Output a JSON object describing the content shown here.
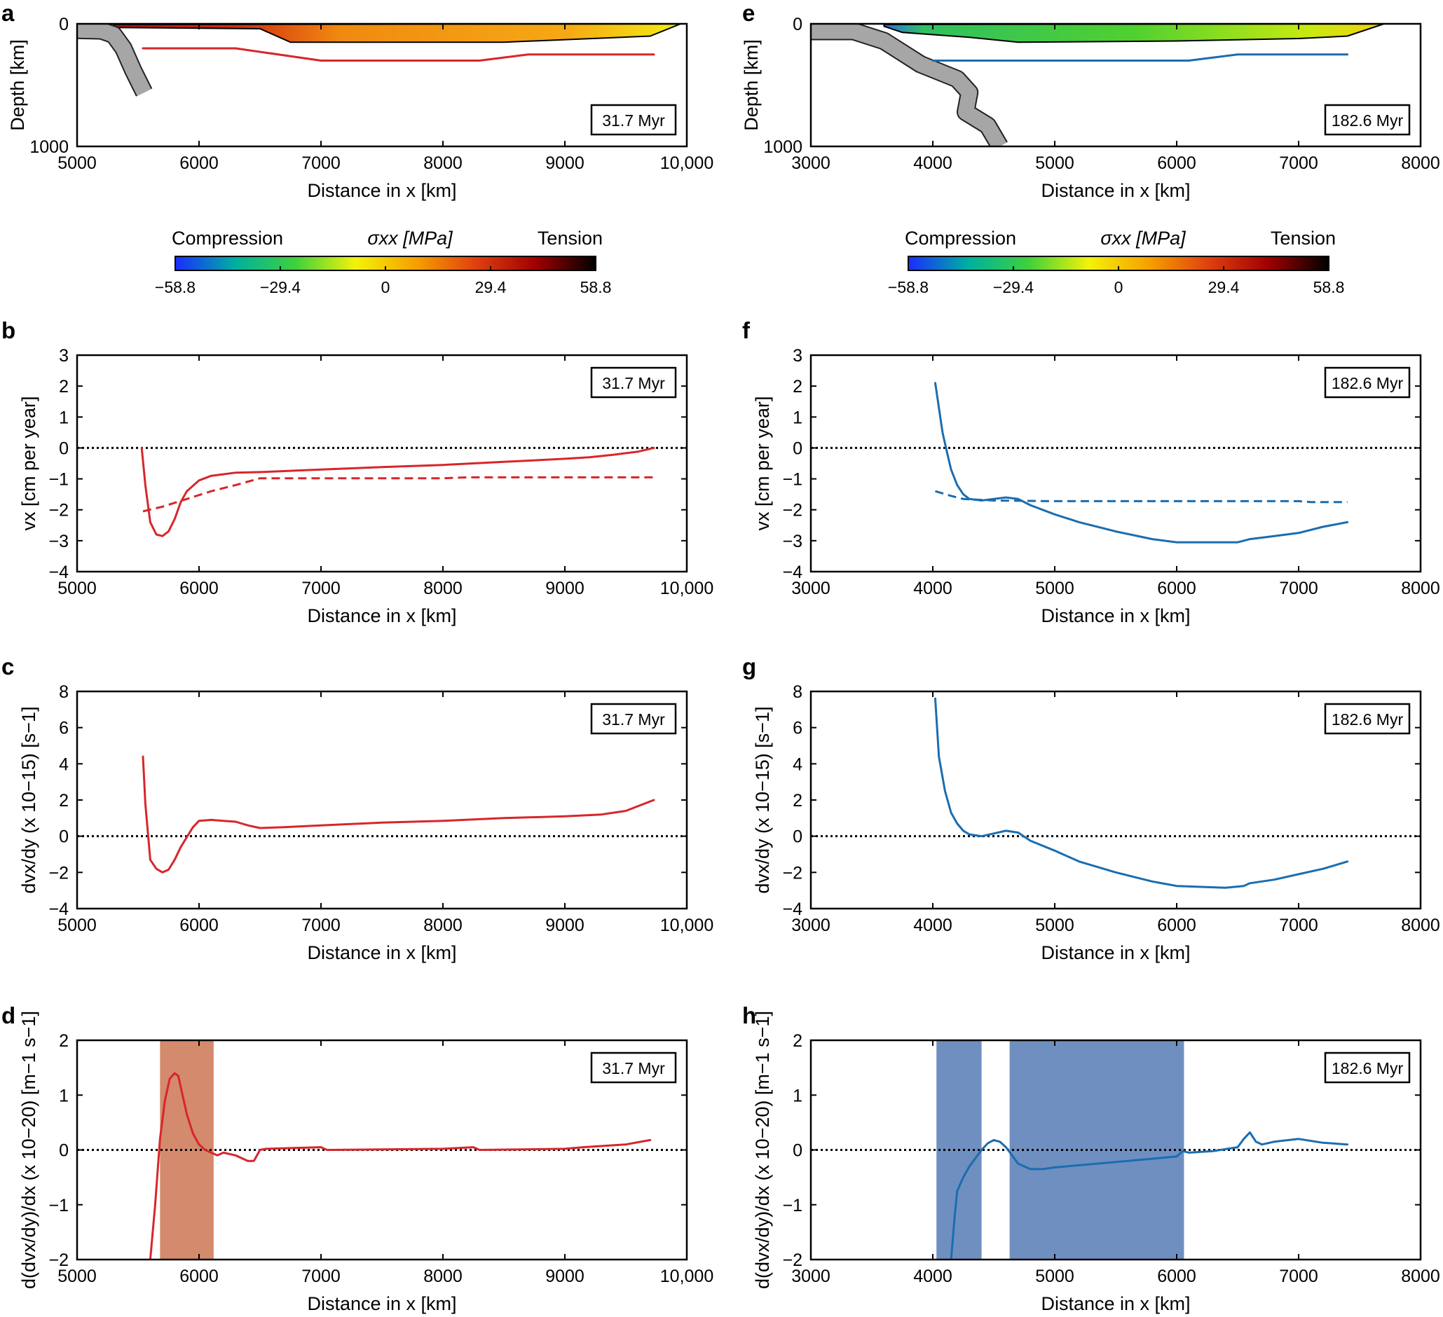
{
  "colors": {
    "red": "#d7262b",
    "blue": "#1a6db0",
    "salmon_band": "#d48a6c",
    "blue_band": "#6f8fc0",
    "slab": "#a6a6a6"
  },
  "colorbar": {
    "left_label": "Compression",
    "center_label": "σxx [MPa]",
    "right_label": "Tension",
    "ticks": [
      "−58.8",
      "−29.4",
      "0",
      "29.4",
      "58.8"
    ],
    "stops": [
      "#1a2cff",
      "#00b0a0",
      "#3ed13c",
      "#f4f20a",
      "#f6a100",
      "#e04010",
      "#a00000",
      "#000000"
    ]
  },
  "chart_data": [
    {
      "id": "a",
      "letter": "a",
      "type": "heatmap",
      "title": "",
      "time_label": "31.7 Myr",
      "xlabel": "Distance in x [km]",
      "ylabel": "Depth [km]",
      "xlim": [
        5000,
        10000
      ],
      "ylim": [
        1000,
        0
      ],
      "xticks": [
        5000,
        6000,
        7000,
        8000,
        9000,
        10000
      ],
      "xtick_labels": [
        "5000",
        "6000",
        "7000",
        "8000",
        "9000",
        "10,000"
      ],
      "yticks": [
        0,
        1000
      ],
      "ytick_labels": [
        "0",
        "1000"
      ],
      "plate_base_km": [
        [
          5300,
          30
        ],
        [
          6500,
          40
        ],
        [
          6750,
          150
        ],
        [
          8500,
          150
        ],
        [
          9700,
          100
        ],
        [
          9950,
          0
        ]
      ],
      "line_series": {
        "color": "red",
        "points": [
          [
            5540,
            200
          ],
          [
            6300,
            200
          ],
          [
            7000,
            300
          ],
          [
            8300,
            300
          ],
          [
            8700,
            250
          ],
          [
            9730,
            250
          ]
        ]
      },
      "slab": [
        [
          5000,
          50
        ],
        [
          5200,
          55
        ],
        [
          5300,
          90
        ],
        [
          5380,
          200
        ],
        [
          5460,
          380
        ],
        [
          5550,
          560
        ]
      ]
    },
    {
      "id": "e",
      "letter": "e",
      "type": "heatmap",
      "title": "",
      "time_label": "182.6 Myr",
      "xlabel": "Distance in x [km]",
      "ylabel": "Depth [km]",
      "xlim": [
        3000,
        8000
      ],
      "ylim": [
        1000,
        0
      ],
      "xticks": [
        3000,
        4000,
        5000,
        6000,
        7000,
        8000
      ],
      "xtick_labels": [
        "3000",
        "4000",
        "5000",
        "6000",
        "7000",
        "8000"
      ],
      "yticks": [
        0,
        1000
      ],
      "ytick_labels": [
        "0",
        "1000"
      ],
      "plate_base_km": [
        [
          3600,
          20
        ],
        [
          3750,
          70
        ],
        [
          4300,
          110
        ],
        [
          4700,
          150
        ],
        [
          6000,
          140
        ],
        [
          7000,
          120
        ],
        [
          7400,
          100
        ],
        [
          7700,
          0
        ]
      ],
      "line_series": {
        "color": "blue",
        "points": [
          [
            4000,
            300
          ],
          [
            6100,
            300
          ],
          [
            6500,
            250
          ],
          [
            7400,
            250
          ]
        ]
      },
      "slab": [
        [
          3000,
          60
        ],
        [
          3350,
          60
        ],
        [
          3600,
          140
        ],
        [
          3900,
          330
        ],
        [
          4200,
          450
        ],
        [
          4300,
          560
        ],
        [
          4270,
          720
        ],
        [
          4450,
          830
        ],
        [
          4550,
          1000
        ]
      ]
    },
    {
      "id": "b",
      "letter": "b",
      "type": "line",
      "title": "",
      "time_label": "31.7 Myr",
      "xlabel": "Distance in x [km]",
      "ylabel": "vx [cm per year]",
      "xlim": [
        5000,
        10000
      ],
      "ylim": [
        -4,
        3
      ],
      "xticks": [
        5000,
        6000,
        7000,
        8000,
        9000,
        10000
      ],
      "xtick_labels": [
        "5000",
        "6000",
        "7000",
        "8000",
        "9000",
        "10,000"
      ],
      "yticks": [
        -4,
        -3,
        -2,
        -1,
        0,
        1,
        2,
        3
      ],
      "ytick_labels": [
        "−4",
        "−3",
        "−2",
        "−1",
        "0",
        "1",
        "2",
        "3"
      ],
      "zero_line": true,
      "series": [
        {
          "name": "solid",
          "style": "solid",
          "color": "red",
          "x": [
            5530,
            5560,
            5600,
            5650,
            5700,
            5750,
            5800,
            5850,
            5900,
            6000,
            6100,
            6200,
            6300,
            6500,
            7000,
            7500,
            8000,
            8500,
            9000,
            9200,
            9400,
            9600,
            9730
          ],
          "y": [
            0,
            -1.2,
            -2.4,
            -2.8,
            -2.85,
            -2.7,
            -2.3,
            -1.75,
            -1.4,
            -1.05,
            -0.9,
            -0.85,
            -0.8,
            -0.78,
            -0.7,
            -0.62,
            -0.55,
            -0.45,
            -0.35,
            -0.3,
            -0.22,
            -0.12,
            0
          ]
        },
        {
          "name": "dashed",
          "style": "dashed",
          "color": "red",
          "x": [
            5540,
            5700,
            5900,
            6100,
            6300,
            6500,
            7000,
            8000,
            8200,
            9000,
            9730
          ],
          "y": [
            -2.05,
            -1.9,
            -1.65,
            -1.4,
            -1.2,
            -0.98,
            -0.98,
            -0.98,
            -0.95,
            -0.95,
            -0.95
          ]
        }
      ],
      "bands": []
    },
    {
      "id": "f",
      "letter": "f",
      "type": "line",
      "title": "",
      "time_label": "182.6 Myr",
      "xlabel": "Distance in x [km]",
      "ylabel": "vx [cm per year]",
      "xlim": [
        3000,
        8000
      ],
      "ylim": [
        -4,
        3
      ],
      "xticks": [
        3000,
        4000,
        5000,
        6000,
        7000,
        8000
      ],
      "xtick_labels": [
        "3000",
        "4000",
        "5000",
        "6000",
        "7000",
        "8000"
      ],
      "yticks": [
        -4,
        -3,
        -2,
        -1,
        0,
        1,
        2,
        3
      ],
      "ytick_labels": [
        "−4",
        "−3",
        "−2",
        "−1",
        "0",
        "1",
        "2",
        "3"
      ],
      "zero_line": true,
      "series": [
        {
          "name": "solid",
          "style": "solid",
          "color": "blue",
          "x": [
            4020,
            4050,
            4080,
            4120,
            4150,
            4200,
            4250,
            4300,
            4400,
            4500,
            4600,
            4700,
            4800,
            5000,
            5200,
            5500,
            5800,
            6000,
            6200,
            6500,
            6600,
            6800,
            7000,
            7200,
            7400
          ],
          "y": [
            2.1,
            1.3,
            0.5,
            -0.2,
            -0.7,
            -1.2,
            -1.5,
            -1.65,
            -1.7,
            -1.65,
            -1.6,
            -1.65,
            -1.85,
            -2.15,
            -2.4,
            -2.7,
            -2.95,
            -3.05,
            -3.05,
            -3.05,
            -2.95,
            -2.85,
            -2.75,
            -2.55,
            -2.4
          ]
        },
        {
          "name": "dashed",
          "style": "dashed",
          "color": "blue",
          "x": [
            4020,
            4150,
            4250,
            4500,
            5000,
            6000,
            7000,
            7100,
            7400
          ],
          "y": [
            -1.4,
            -1.55,
            -1.65,
            -1.7,
            -1.72,
            -1.72,
            -1.72,
            -1.75,
            -1.75
          ]
        }
      ],
      "bands": []
    },
    {
      "id": "c",
      "letter": "c",
      "type": "line",
      "title": "",
      "time_label": "31.7 Myr",
      "xlabel": "Distance in x [km]",
      "ylabel": "dvx/dy (x 10−15) [s−1]",
      "xlim": [
        5000,
        10000
      ],
      "ylim": [
        -4,
        8
      ],
      "xticks": [
        5000,
        6000,
        7000,
        8000,
        9000,
        10000
      ],
      "xtick_labels": [
        "5000",
        "6000",
        "7000",
        "8000",
        "9000",
        "10,000"
      ],
      "yticks": [
        -4,
        -2,
        0,
        2,
        4,
        6,
        8
      ],
      "ytick_labels": [
        "−4",
        "−2",
        "0",
        "2",
        "4",
        "6",
        "8"
      ],
      "zero_line": true,
      "series": [
        {
          "name": "solid",
          "style": "solid",
          "color": "red",
          "x": [
            5540,
            5560,
            5600,
            5650,
            5700,
            5750,
            5800,
            5850,
            5900,
            5950,
            6000,
            6100,
            6200,
            6300,
            6400,
            6500,
            6700,
            7000,
            7500,
            8000,
            8500,
            9000,
            9300,
            9500,
            9730
          ],
          "y": [
            4.4,
            1.8,
            -1.3,
            -1.8,
            -2.0,
            -1.85,
            -1.3,
            -0.6,
            -0.05,
            0.5,
            0.85,
            0.9,
            0.85,
            0.8,
            0.6,
            0.45,
            0.5,
            0.6,
            0.75,
            0.85,
            1.0,
            1.1,
            1.2,
            1.4,
            2.0
          ]
        }
      ],
      "bands": []
    },
    {
      "id": "g",
      "letter": "g",
      "type": "line",
      "title": "",
      "time_label": "182.6 Myr",
      "xlabel": "Distance in x [km]",
      "ylabel": "dvx/dy (x 10−15) [s−1]",
      "xlim": [
        3000,
        8000
      ],
      "ylim": [
        -4,
        8
      ],
      "xticks": [
        3000,
        4000,
        5000,
        6000,
        7000,
        8000
      ],
      "xtick_labels": [
        "3000",
        "4000",
        "5000",
        "6000",
        "7000",
        "8000"
      ],
      "yticks": [
        -4,
        -2,
        0,
        2,
        4,
        6,
        8
      ],
      "ytick_labels": [
        "−4",
        "−2",
        "0",
        "2",
        "4",
        "6",
        "8"
      ],
      "zero_line": true,
      "series": [
        {
          "name": "solid",
          "style": "solid",
          "color": "blue",
          "x": [
            4020,
            4050,
            4100,
            4150,
            4200,
            4250,
            4300,
            4400,
            4500,
            4600,
            4700,
            4800,
            5000,
            5200,
            5500,
            5800,
            6000,
            6200,
            6400,
            6550,
            6600,
            6800,
            7000,
            7200,
            7400
          ],
          "y": [
            7.6,
            4.4,
            2.5,
            1.3,
            0.7,
            0.3,
            0.1,
            0.0,
            0.15,
            0.3,
            0.2,
            -0.25,
            -0.8,
            -1.4,
            -2.0,
            -2.5,
            -2.75,
            -2.8,
            -2.85,
            -2.75,
            -2.6,
            -2.4,
            -2.1,
            -1.8,
            -1.4
          ]
        }
      ],
      "bands": []
    },
    {
      "id": "d",
      "letter": "d",
      "type": "line",
      "title": "",
      "time_label": "31.7 Myr",
      "xlabel": "Distance in x [km]",
      "ylabel": "d(dvx/dy)/dx (x 10−20) [m−1 s−1]",
      "xlim": [
        5000,
        10000
      ],
      "ylim": [
        -2,
        2
      ],
      "xticks": [
        5000,
        6000,
        7000,
        8000,
        9000,
        10000
      ],
      "xtick_labels": [
        "5000",
        "6000",
        "7000",
        "8000",
        "9000",
        "10,000"
      ],
      "yticks": [
        -2,
        -1,
        0,
        1,
        2
      ],
      "ytick_labels": [
        "−2",
        "−1",
        "0",
        "1",
        "2"
      ],
      "zero_line": true,
      "series": [
        {
          "name": "solid",
          "style": "solid",
          "color": "red",
          "x": [
            5600,
            5640,
            5680,
            5720,
            5760,
            5800,
            5830,
            5860,
            5900,
            5950,
            6000,
            6050,
            6100,
            6150,
            6200,
            6300,
            6400,
            6450,
            6500,
            6550,
            7000,
            7050,
            8000,
            8250,
            8300,
            9000,
            9150,
            9500,
            9700
          ],
          "y": [
            -2.0,
            -1.0,
            0.2,
            0.9,
            1.3,
            1.4,
            1.35,
            1.05,
            0.65,
            0.3,
            0.1,
            0.0,
            -0.05,
            -0.1,
            -0.05,
            -0.1,
            -0.2,
            -0.2,
            0.0,
            0.02,
            0.05,
            0.0,
            0.02,
            0.05,
            0.0,
            0.02,
            0.05,
            0.1,
            0.18
          ]
        }
      ],
      "bands": [
        {
          "from": 5680,
          "to": 6120,
          "color": "salmon_band"
        }
      ]
    },
    {
      "id": "h",
      "letter": "h",
      "type": "line",
      "title": "",
      "time_label": "182.6 Myr",
      "xlabel": "Distance in x [km]",
      "ylabel": "d(dvx/dy)/dx (x 10−20) [m−1 s−1]",
      "xlim": [
        3000,
        8000
      ],
      "ylim": [
        -2,
        2
      ],
      "xticks": [
        3000,
        4000,
        5000,
        6000,
        7000,
        8000
      ],
      "xtick_labels": [
        "3000",
        "4000",
        "5000",
        "6000",
        "7000",
        "8000"
      ],
      "yticks": [
        -2,
        -1,
        0,
        1,
        2
      ],
      "ytick_labels": [
        "−2",
        "−1",
        "0",
        "1",
        "2"
      ],
      "zero_line": true,
      "series": [
        {
          "name": "solid",
          "style": "solid",
          "color": "blue",
          "x": [
            4150,
            4180,
            4200,
            4250,
            4300,
            4350,
            4400,
            4450,
            4500,
            4550,
            4600,
            4650,
            4700,
            4800,
            4900,
            5000,
            5500,
            6000,
            6050,
            6100,
            6300,
            6500,
            6550,
            6600,
            6650,
            6700,
            6800,
            7000,
            7200,
            7400
          ],
          "y": [
            -2.0,
            -1.2,
            -0.75,
            -0.5,
            -0.3,
            -0.15,
            0.0,
            0.12,
            0.18,
            0.15,
            0.05,
            -0.1,
            -0.25,
            -0.35,
            -0.35,
            -0.32,
            -0.22,
            -0.12,
            -0.02,
            -0.05,
            -0.02,
            0.05,
            0.2,
            0.32,
            0.15,
            0.1,
            0.15,
            0.2,
            0.13,
            0.1
          ]
        }
      ],
      "bands": [
        {
          "from": 4030,
          "to": 4400,
          "color": "blue_band"
        },
        {
          "from": 4630,
          "to": 6060,
          "color": "blue_band"
        }
      ]
    }
  ]
}
